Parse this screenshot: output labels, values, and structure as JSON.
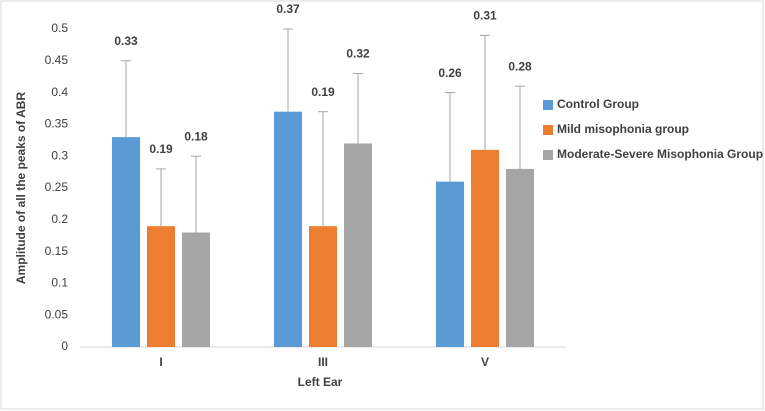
{
  "chart_data": {
    "type": "bar",
    "x_label": "Left Ear",
    "y_label": "Amplitude of all the peaks of ABR",
    "categories": [
      "I",
      "III",
      "V"
    ],
    "series": [
      {
        "name": "Control Group",
        "color": "#5b9bd5",
        "values": [
          0.33,
          0.37,
          0.26
        ],
        "errors": [
          0.12,
          0.13,
          0.14
        ]
      },
      {
        "name": "Mild misophonia group",
        "color": "#ed7d31",
        "values": [
          0.19,
          0.19,
          0.31
        ],
        "errors": [
          0.09,
          0.18,
          0.18
        ]
      },
      {
        "name": "Moderate-Severe Misophonia Group",
        "color": "#a5a5a5",
        "values": [
          0.18,
          0.32,
          0.28
        ],
        "errors": [
          0.12,
          0.11,
          0.13
        ]
      }
    ],
    "ylim": [
      0,
      0.5
    ],
    "yticks": [
      0,
      0.05,
      0.1,
      0.15,
      0.2,
      0.25,
      0.3,
      0.35,
      0.4,
      0.45,
      0.5
    ],
    "grid": false,
    "legend": "right"
  }
}
